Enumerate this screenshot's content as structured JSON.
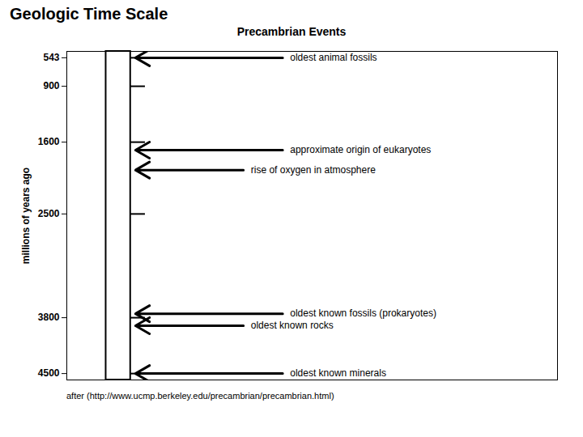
{
  "chart_data": {
    "type": "timeline",
    "title": "Geologic Time Scale",
    "subtitle": "Precambrian Events",
    "ylabel": "millions of years ago",
    "caption": "after (http://www.ucmp.berkeley.edu/precambrian/precambrian.html)",
    "categories": [
      "oldest animal fossils",
      "approximate origin of eukaryotes",
      "rise of oxygen in atmosphere",
      "oldest known fossils (prokaryotes)",
      "oldest known rocks",
      "oldest known minerals"
    ],
    "values": [
      543,
      1700,
      1950,
      3750,
      3900,
      4500
    ],
    "ylim": [
      4580,
      463
    ],
    "yticks": [
      543,
      900,
      1600,
      2500,
      3800,
      4500
    ],
    "grid": false
  }
}
